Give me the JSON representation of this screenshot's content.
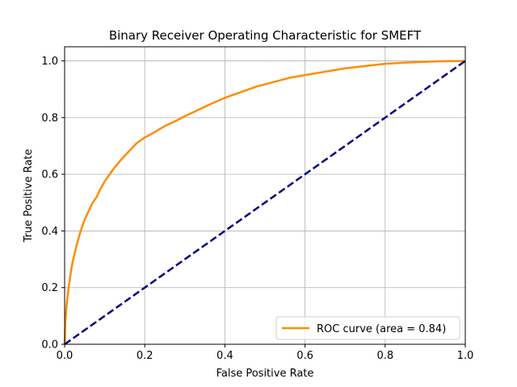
{
  "chart_data": {
    "type": "line",
    "title": "Binary Receiver Operating Characteristic for SMEFT",
    "xlabel": "False Positive Rate",
    "ylabel": "True Positive Rate",
    "xlim": [
      0.0,
      1.0
    ],
    "ylim": [
      0.0,
      1.05
    ],
    "xticks": [
      "0.0",
      "0.2",
      "0.4",
      "0.6",
      "0.8",
      "1.0"
    ],
    "yticks": [
      "0.0",
      "0.2",
      "0.4",
      "0.6",
      "0.8",
      "1.0"
    ],
    "grid": true,
    "legend_position": "lower-right",
    "series": [
      {
        "name": "ROC curve (area = 0.84)",
        "color": "#ff8c00",
        "style": "solid",
        "x": [
          0.0,
          0.002,
          0.005,
          0.01,
          0.015,
          0.02,
          0.03,
          0.04,
          0.05,
          0.06,
          0.07,
          0.08,
          0.09,
          0.1,
          0.12,
          0.14,
          0.16,
          0.18,
          0.2,
          0.22,
          0.25,
          0.28,
          0.3,
          0.33,
          0.36,
          0.4,
          0.44,
          0.48,
          0.52,
          0.56,
          0.6,
          0.65,
          0.7,
          0.75,
          0.8,
          0.85,
          0.9,
          0.95,
          1.0
        ],
        "y": [
          0.0,
          0.08,
          0.14,
          0.2,
          0.25,
          0.29,
          0.35,
          0.4,
          0.44,
          0.47,
          0.5,
          0.52,
          0.55,
          0.575,
          0.615,
          0.65,
          0.68,
          0.71,
          0.73,
          0.745,
          0.77,
          0.79,
          0.805,
          0.825,
          0.845,
          0.87,
          0.89,
          0.91,
          0.925,
          0.94,
          0.95,
          0.962,
          0.974,
          0.982,
          0.99,
          0.994,
          0.997,
          0.999,
          1.0
        ]
      },
      {
        "name": "",
        "color": "#000080",
        "style": "dashed",
        "x": [
          0.0,
          1.0
        ],
        "y": [
          0.0,
          1.0
        ]
      }
    ]
  }
}
